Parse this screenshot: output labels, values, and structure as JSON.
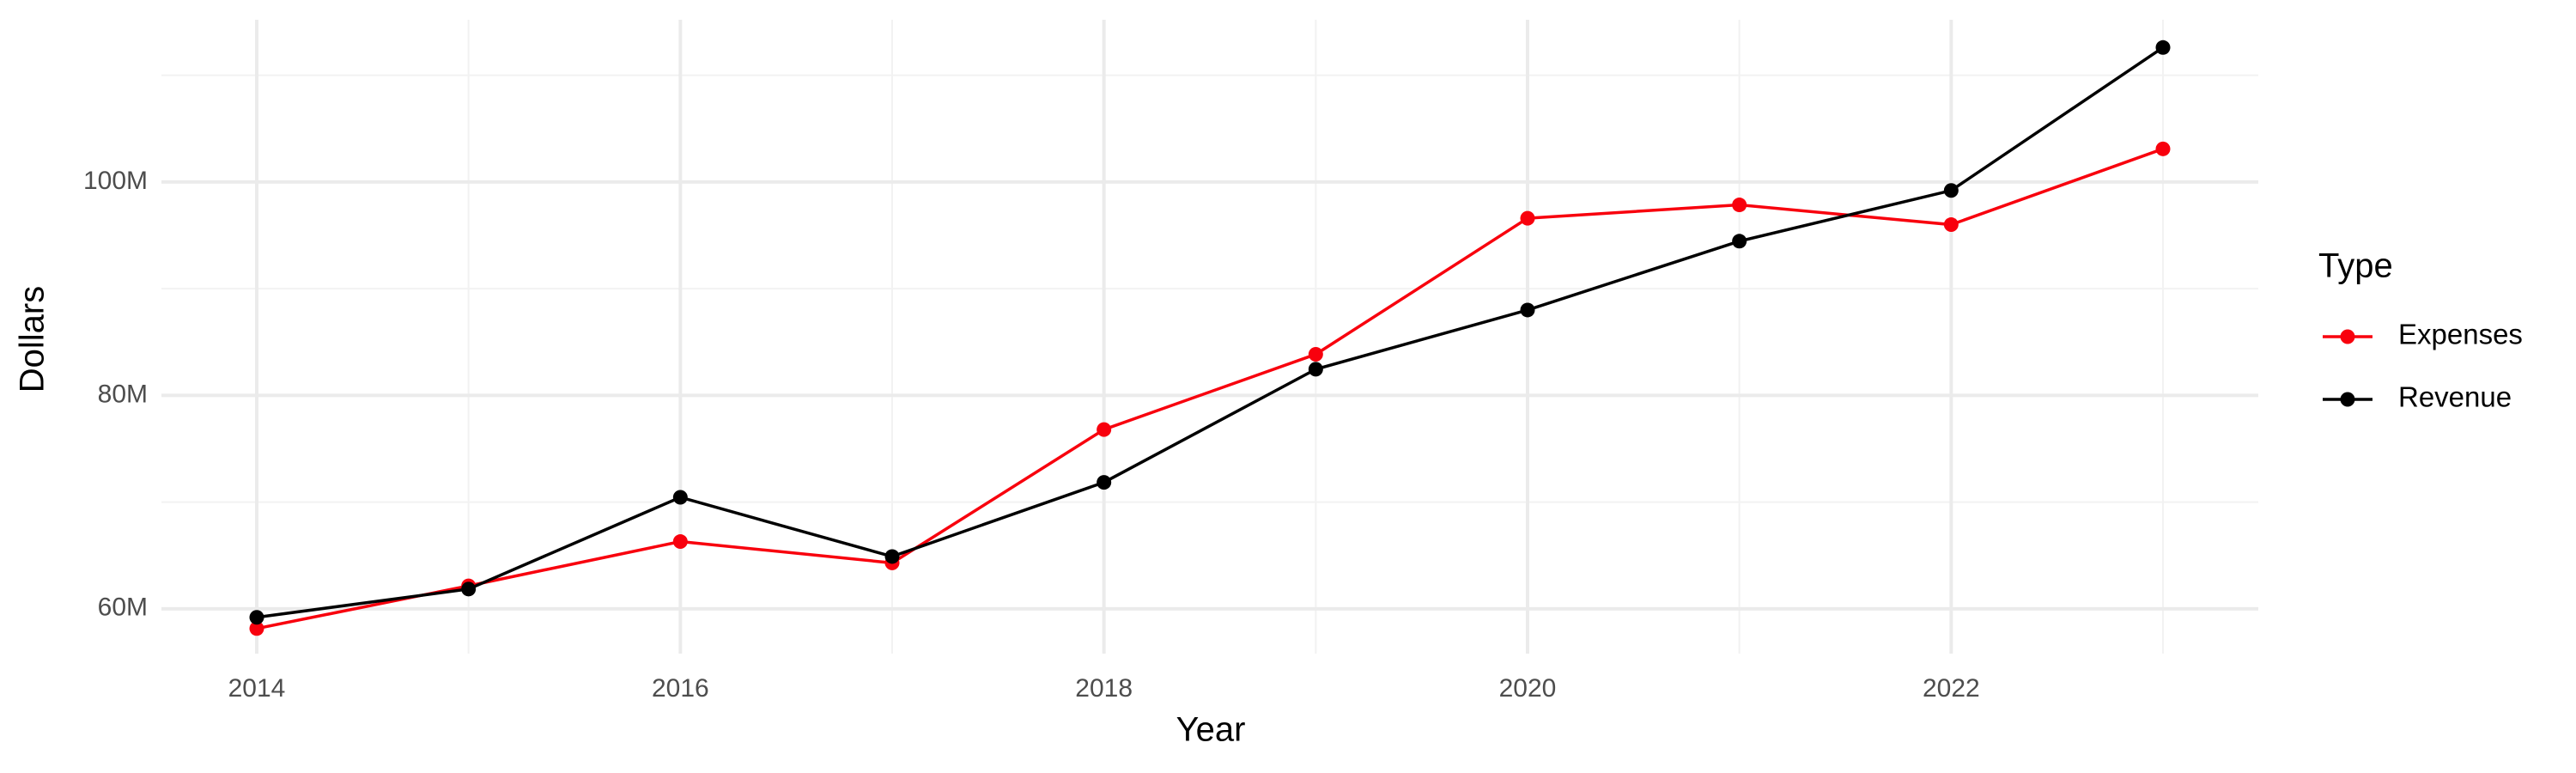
{
  "chart_data": {
    "type": "line",
    "xlabel": "Year",
    "ylabel": "Dollars",
    "legend_title": "Type",
    "legend": "right",
    "grid": true,
    "x": [
      2014,
      2015,
      2016,
      2017,
      2018,
      2019,
      2020,
      2021,
      2022,
      2023
    ],
    "series": [
      {
        "name": "Expenses",
        "color": "#f8000d",
        "values": [
          58150000,
          62150000,
          66300000,
          64300000,
          76800000,
          83850000,
          96600000,
          97850000,
          96000000,
          103100000
        ]
      },
      {
        "name": "Revenue",
        "color": "#000000",
        "values": [
          59200000,
          61850000,
          70450000,
          64900000,
          71850000,
          82450000,
          88000000,
          94450000,
          99200000,
          112600000
        ]
      }
    ],
    "xlim": [
      2013.55,
      2023.45
    ],
    "xticks": [
      2014,
      2016,
      2018,
      2020,
      2022
    ],
    "ylim": [
      55800000,
      115200000
    ],
    "yticks": [
      {
        "value": 60000000,
        "label": "60M"
      },
      {
        "value": 80000000,
        "label": "80M"
      },
      {
        "value": 100000000,
        "label": "100M"
      }
    ]
  }
}
